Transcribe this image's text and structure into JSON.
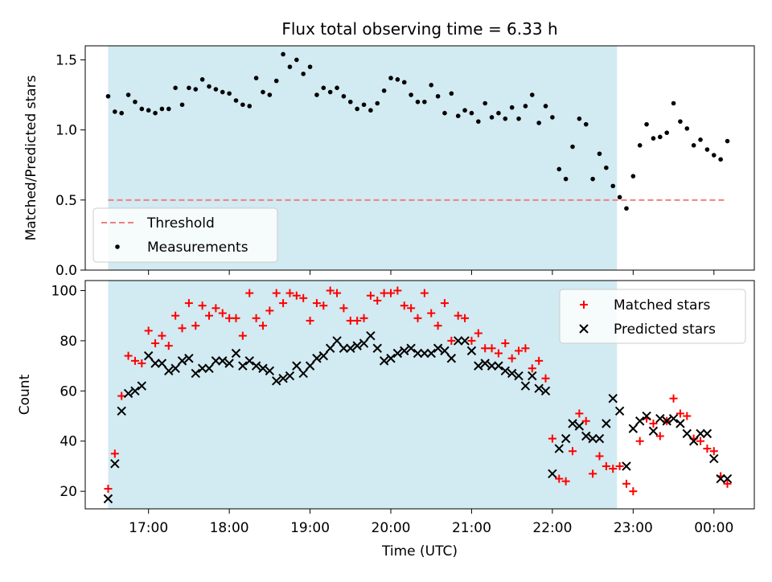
{
  "figure": {
    "title": "Flux total observing time = 6.33 h",
    "xlabel": "Time (UTC)",
    "xticks": [
      "17:00",
      "18:00",
      "19:00",
      "20:00",
      "21:00",
      "22:00",
      "23:00",
      "00:00"
    ],
    "shaded_region": {
      "start": "16:30",
      "end": "22:48",
      "color": "#add8e6"
    }
  },
  "chart_data": [
    {
      "type": "scatter",
      "panel": "top",
      "ylabel": "Matched/Predicted stars",
      "ylim": [
        0,
        1.6
      ],
      "yticks": [
        "0.0",
        "0.5",
        "1.0",
        "1.5"
      ],
      "xlim": [
        "16:13",
        "00:30"
      ],
      "legend_position": "lower-left",
      "series": [
        {
          "name": "Threshold",
          "kind": "dashed-line",
          "color": "#f08080",
          "x": [
            "16:30",
            "00:10"
          ],
          "y": [
            0.5,
            0.5
          ]
        },
        {
          "name": "Measurements",
          "kind": "points",
          "color": "#000000",
          "x": [
            "16:30",
            "16:35",
            "16:40",
            "16:45",
            "16:50",
            "16:55",
            "17:00",
            "17:05",
            "17:10",
            "17:15",
            "17:20",
            "17:25",
            "17:30",
            "17:35",
            "17:40",
            "17:45",
            "17:50",
            "17:55",
            "18:00",
            "18:05",
            "18:10",
            "18:15",
            "18:20",
            "18:25",
            "18:30",
            "18:35",
            "18:40",
            "18:45",
            "18:50",
            "18:55",
            "19:00",
            "19:05",
            "19:10",
            "19:15",
            "19:20",
            "19:25",
            "19:30",
            "19:35",
            "19:40",
            "19:45",
            "19:50",
            "19:55",
            "20:00",
            "20:05",
            "20:10",
            "20:15",
            "20:20",
            "20:25",
            "20:30",
            "20:35",
            "20:40",
            "20:45",
            "20:50",
            "20:55",
            "21:00",
            "21:05",
            "21:10",
            "21:15",
            "21:20",
            "21:25",
            "21:30",
            "21:35",
            "21:40",
            "21:45",
            "21:50",
            "21:55",
            "22:00",
            "22:05",
            "22:10",
            "22:15",
            "22:20",
            "22:25",
            "22:30",
            "22:35",
            "22:40",
            "22:45",
            "22:50",
            "22:55",
            "23:00",
            "23:05",
            "23:10",
            "23:15",
            "23:20",
            "23:25",
            "23:30",
            "23:35",
            "23:40",
            "23:45",
            "23:50",
            "23:55",
            "00:00",
            "00:05",
            "00:10"
          ],
          "y": [
            1.24,
            1.13,
            1.12,
            1.25,
            1.2,
            1.15,
            1.14,
            1.12,
            1.15,
            1.15,
            1.3,
            1.18,
            1.3,
            1.29,
            1.36,
            1.31,
            1.29,
            1.27,
            1.26,
            1.21,
            1.18,
            1.17,
            1.37,
            1.27,
            1.25,
            1.35,
            1.54,
            1.45,
            1.5,
            1.4,
            1.45,
            1.25,
            1.3,
            1.27,
            1.3,
            1.24,
            1.2,
            1.15,
            1.18,
            1.14,
            1.19,
            1.28,
            1.37,
            1.36,
            1.34,
            1.25,
            1.2,
            1.2,
            1.32,
            1.24,
            1.12,
            1.26,
            1.1,
            1.14,
            1.12,
            1.06,
            1.19,
            1.09,
            1.12,
            1.08,
            1.16,
            1.08,
            1.17,
            1.25,
            1.05,
            1.17,
            1.09,
            0.72,
            0.65,
            0.88,
            1.08,
            1.04,
            0.65,
            0.83,
            0.73,
            0.6,
            0.52,
            0.44,
            0.67,
            0.89,
            1.04,
            0.94,
            0.95,
            0.98,
            1.19,
            1.06,
            1.01,
            0.89,
            0.93,
            0.86,
            0.82,
            0.79,
            0.92
          ]
        }
      ]
    },
    {
      "type": "scatter",
      "panel": "bottom",
      "ylabel": "Count",
      "ylim": [
        13,
        104
      ],
      "yticks": [
        "20",
        "40",
        "60",
        "80",
        "100"
      ],
      "xlim": [
        "16:13",
        "00:30"
      ],
      "legend_position": "upper-right",
      "series": [
        {
          "name": "Matched stars",
          "kind": "plus",
          "color": "#ff0000",
          "x": [
            "16:30",
            "16:35",
            "16:40",
            "16:45",
            "16:50",
            "16:55",
            "17:00",
            "17:05",
            "17:10",
            "17:15",
            "17:20",
            "17:25",
            "17:30",
            "17:35",
            "17:40",
            "17:45",
            "17:50",
            "17:55",
            "18:00",
            "18:05",
            "18:10",
            "18:15",
            "18:20",
            "18:25",
            "18:30",
            "18:35",
            "18:40",
            "18:45",
            "18:50",
            "18:55",
            "19:00",
            "19:05",
            "19:10",
            "19:15",
            "19:20",
            "19:25",
            "19:30",
            "19:35",
            "19:40",
            "19:45",
            "19:50",
            "19:55",
            "20:00",
            "20:05",
            "20:10",
            "20:15",
            "20:20",
            "20:25",
            "20:30",
            "20:35",
            "20:40",
            "20:45",
            "20:50",
            "20:55",
            "21:00",
            "21:05",
            "21:10",
            "21:15",
            "21:20",
            "21:25",
            "21:30",
            "21:35",
            "21:40",
            "21:45",
            "21:50",
            "21:55",
            "22:00",
            "22:05",
            "22:10",
            "22:15",
            "22:20",
            "22:25",
            "22:30",
            "22:35",
            "22:40",
            "22:45",
            "22:50",
            "22:55",
            "23:00",
            "23:05",
            "23:10",
            "23:15",
            "23:20",
            "23:25",
            "23:30",
            "23:35",
            "23:40",
            "23:45",
            "23:50",
            "23:55",
            "00:00",
            "00:05",
            "00:10"
          ],
          "y": [
            21,
            35,
            58,
            74,
            72,
            71,
            84,
            79,
            82,
            78,
            90,
            85,
            95,
            86,
            94,
            90,
            93,
            91,
            89,
            89,
            82,
            99,
            89,
            86,
            92,
            99,
            95,
            99,
            98,
            97,
            88,
            95,
            94,
            100,
            99,
            93,
            88,
            88,
            89,
            98,
            96,
            99,
            99,
            100,
            94,
            93,
            89,
            99,
            91,
            86,
            95,
            80,
            90,
            89,
            80,
            83,
            77,
            77,
            75,
            79,
            73,
            76,
            77,
            69,
            72,
            65,
            41,
            25,
            24,
            36,
            51,
            48,
            27,
            34,
            30,
            29,
            30,
            23,
            20,
            40,
            49,
            47,
            42,
            48,
            57,
            51,
            50,
            41,
            40,
            37,
            36,
            26,
            23
          ]
        },
        {
          "name": "Predicted stars",
          "kind": "cross",
          "color": "#000000",
          "x": [
            "16:30",
            "16:35",
            "16:40",
            "16:45",
            "16:50",
            "16:55",
            "17:00",
            "17:05",
            "17:10",
            "17:15",
            "17:20",
            "17:25",
            "17:30",
            "17:35",
            "17:40",
            "17:45",
            "17:50",
            "17:55",
            "18:00",
            "18:05",
            "18:10",
            "18:15",
            "18:20",
            "18:25",
            "18:30",
            "18:35",
            "18:40",
            "18:45",
            "18:50",
            "18:55",
            "19:00",
            "19:05",
            "19:10",
            "19:15",
            "19:20",
            "19:25",
            "19:30",
            "19:35",
            "19:40",
            "19:45",
            "19:50",
            "19:55",
            "20:00",
            "20:05",
            "20:10",
            "20:15",
            "20:20",
            "20:25",
            "20:30",
            "20:35",
            "20:40",
            "20:45",
            "20:50",
            "20:55",
            "21:00",
            "21:05",
            "21:10",
            "21:15",
            "21:20",
            "21:25",
            "21:30",
            "21:35",
            "21:40",
            "21:45",
            "21:50",
            "21:55",
            "22:00",
            "22:05",
            "22:10",
            "22:15",
            "22:20",
            "22:25",
            "22:30",
            "22:35",
            "22:40",
            "22:45",
            "22:50",
            "22:55",
            "23:00",
            "23:05",
            "23:10",
            "23:15",
            "23:20",
            "23:25",
            "23:30",
            "23:35",
            "23:40",
            "23:45",
            "23:50",
            "23:55",
            "00:00",
            "00:05",
            "00:10"
          ],
          "y": [
            17,
            31,
            52,
            59,
            60,
            62,
            74,
            71,
            71,
            68,
            69,
            72,
            73,
            67,
            69,
            69,
            72,
            72,
            71,
            75,
            70,
            72,
            70,
            69,
            68,
            64,
            65,
            66,
            70,
            67,
            70,
            73,
            74,
            77,
            80,
            77,
            77,
            78,
            79,
            82,
            77,
            72,
            73,
            75,
            76,
            77,
            75,
            75,
            75,
            77,
            76,
            73,
            80,
            80,
            76,
            70,
            71,
            70,
            70,
            68,
            67,
            66,
            62,
            66,
            61,
            60,
            27,
            37,
            41,
            47,
            46,
            42,
            41,
            41,
            47,
            57,
            52,
            30,
            45,
            48,
            50,
            44,
            49,
            48,
            49,
            47,
            43,
            40,
            43,
            43,
            33,
            25,
            25
          ]
        }
      ]
    }
  ]
}
